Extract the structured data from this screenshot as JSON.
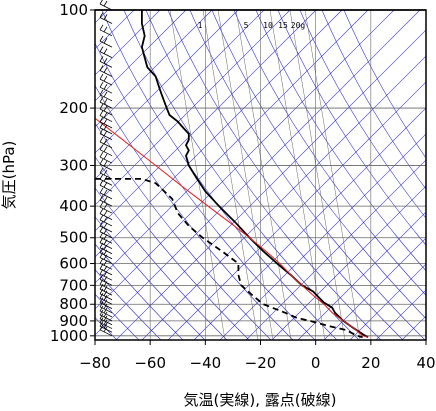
{
  "chart_data": {
    "type": "line",
    "title": "",
    "xlabel": "気温(実線), 露点(破線)",
    "ylabel": "気圧(hPa)",
    "xlim": [
      -80,
      40
    ],
    "ylim": [
      1030,
      100
    ],
    "y_scale": "log",
    "grid": true,
    "x_ticks": [
      "−80",
      "−60",
      "−40",
      "−20",
      "0",
      "20",
      "40"
    ],
    "y_ticks": [
      "100",
      "200",
      "300",
      "400",
      "500",
      "600",
      "700",
      "800",
      "900",
      "1000"
    ],
    "mixing_ratio_labels": [
      "1",
      "5",
      "10",
      "15",
      "20g"
    ],
    "series": [
      {
        "role": "temperature",
        "style": "solid",
        "color": "#000000",
        "points": [
          [
            100,
            -63
          ],
          [
            110,
            -63
          ],
          [
            120,
            -62
          ],
          [
            130,
            -63
          ],
          [
            140,
            -62
          ],
          [
            150,
            -61
          ],
          [
            160,
            -58
          ],
          [
            170,
            -57
          ],
          [
            180,
            -56
          ],
          [
            190,
            -55
          ],
          [
            200,
            -54
          ],
          [
            210,
            -53
          ],
          [
            220,
            -50
          ],
          [
            230,
            -48
          ],
          [
            240,
            -46
          ],
          [
            250,
            -46
          ],
          [
            260,
            -47
          ],
          [
            270,
            -46
          ],
          [
            280,
            -47
          ],
          [
            300,
            -46
          ],
          [
            330,
            -43
          ],
          [
            360,
            -40
          ],
          [
            400,
            -35
          ],
          [
            450,
            -29
          ],
          [
            500,
            -24
          ],
          [
            550,
            -19
          ],
          [
            600,
            -14
          ],
          [
            650,
            -9
          ],
          [
            700,
            -5
          ],
          [
            730,
            -1
          ],
          [
            760,
            1
          ],
          [
            790,
            3
          ],
          [
            820,
            6
          ],
          [
            850,
            7
          ],
          [
            900,
            10
          ],
          [
            925,
            12
          ],
          [
            950,
            14
          ],
          [
            975,
            16
          ],
          [
            1000,
            18
          ],
          [
            1010,
            19
          ]
        ]
      },
      {
        "role": "dewpoint",
        "style": "dashed",
        "color": "#000000",
        "points": [
          [
            330,
            -80
          ],
          [
            330,
            -63
          ],
          [
            340,
            -58
          ],
          [
            380,
            -52
          ],
          [
            420,
            -50
          ],
          [
            460,
            -46
          ],
          [
            500,
            -41
          ],
          [
            550,
            -34
          ],
          [
            600,
            -28
          ],
          [
            650,
            -28
          ],
          [
            700,
            -27
          ],
          [
            750,
            -23
          ],
          [
            800,
            -19
          ],
          [
            850,
            -11
          ],
          [
            880,
            -7
          ],
          [
            900,
            -2
          ],
          [
            930,
            4
          ],
          [
            960,
            11
          ],
          [
            1000,
            15
          ],
          [
            1010,
            17
          ]
        ]
      },
      {
        "role": "parcel",
        "style": "solid",
        "color": "#e8201f",
        "points": [
          [
            215,
            -80
          ],
          [
            250,
            -70
          ],
          [
            300,
            -58
          ],
          [
            350,
            -48
          ],
          [
            400,
            -39
          ],
          [
            450,
            -31
          ],
          [
            500,
            -24
          ],
          [
            550,
            -18
          ],
          [
            600,
            -13
          ],
          [
            650,
            -9
          ],
          [
            700,
            -5
          ],
          [
            750,
            -1
          ],
          [
            800,
            3
          ],
          [
            850,
            6
          ],
          [
            900,
            10
          ],
          [
            950,
            14
          ],
          [
            1000,
            17
          ],
          [
            1010,
            19
          ]
        ]
      }
    ],
    "wind_barb_levels": [
      100,
      110,
      120,
      130,
      140,
      150,
      160,
      170,
      180,
      190,
      200,
      210,
      220,
      230,
      240,
      250,
      265,
      280,
      295,
      310,
      330,
      345,
      360,
      380,
      400,
      420,
      440,
      460,
      480,
      500,
      520,
      540,
      560,
      580,
      600,
      625,
      650,
      675,
      700,
      725,
      750,
      775,
      800,
      825,
      850,
      875,
      900,
      925,
      950,
      975,
      1000
    ],
    "colors": {
      "isotherm_blue": "#3333cc",
      "grid_gray": "#666666",
      "parcel_red": "#e8201f",
      "profile_black": "#000000"
    }
  }
}
